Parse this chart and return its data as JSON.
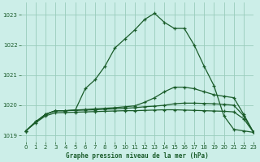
{
  "title": "Graphe pression niveau de la mer (hPa)",
  "bg_color": "#cceee8",
  "grid_color": "#99ccbb",
  "line_color_dark": "#1a5c2a",
  "line_color_med": "#2a7a3a",
  "xlim": [
    -0.5,
    23
  ],
  "ylim": [
    1018.8,
    1023.4
  ],
  "yticks": [
    1019,
    1020,
    1021,
    1022,
    1023
  ],
  "xticks": [
    0,
    1,
    2,
    3,
    4,
    5,
    6,
    7,
    8,
    9,
    10,
    11,
    12,
    13,
    14,
    15,
    16,
    17,
    18,
    19,
    20,
    21,
    22,
    23
  ],
  "series1_x": [
    0,
    1,
    2,
    3,
    4,
    5,
    6,
    7,
    8,
    9,
    10,
    11,
    12,
    13,
    14,
    15,
    16,
    17,
    18,
    19,
    20,
    21,
    22,
    23
  ],
  "series1_y": [
    1019.15,
    1019.45,
    1019.7,
    1019.82,
    1019.82,
    1019.84,
    1020.55,
    1020.85,
    1021.3,
    1021.9,
    1022.2,
    1022.5,
    1022.85,
    1023.05,
    1022.75,
    1022.55,
    1022.55,
    1022.0,
    1021.3,
    1020.65,
    1019.65,
    1019.2,
    1019.15,
    1019.1
  ],
  "series2_x": [
    0,
    1,
    2,
    3,
    4,
    5,
    6,
    7,
    8,
    9,
    10,
    11,
    12,
    13,
    14,
    15,
    16,
    17,
    18,
    19,
    20,
    21,
    22,
    23
  ],
  "series2_y": [
    1019.15,
    1019.45,
    1019.7,
    1019.82,
    1019.82,
    1019.84,
    1019.86,
    1019.88,
    1019.9,
    1019.92,
    1019.95,
    1019.98,
    1020.1,
    1020.25,
    1020.45,
    1020.6,
    1020.6,
    1020.55,
    1020.45,
    1020.35,
    1020.3,
    1020.25,
    1019.7,
    1019.1
  ],
  "series3_x": [
    0,
    1,
    2,
    3,
    4,
    5,
    6,
    7,
    8,
    9,
    10,
    11,
    12,
    13,
    14,
    15,
    16,
    17,
    18,
    19,
    20,
    21,
    22,
    23
  ],
  "series3_y": [
    1019.15,
    1019.45,
    1019.7,
    1019.82,
    1019.82,
    1019.83,
    1019.84,
    1019.85,
    1019.87,
    1019.88,
    1019.9,
    1019.92,
    1019.95,
    1019.97,
    1020.0,
    1020.05,
    1020.07,
    1020.07,
    1020.06,
    1020.05,
    1020.03,
    1020.0,
    1019.65,
    1019.1
  ],
  "series4_x": [
    0,
    1,
    2,
    3,
    4,
    5,
    6,
    7,
    8,
    9,
    10,
    11,
    12,
    13,
    14,
    15,
    16,
    17,
    18,
    19,
    20,
    21,
    22,
    23
  ],
  "series4_y": [
    1019.15,
    1019.42,
    1019.65,
    1019.75,
    1019.76,
    1019.77,
    1019.78,
    1019.79,
    1019.8,
    1019.81,
    1019.82,
    1019.82,
    1019.83,
    1019.84,
    1019.85,
    1019.85,
    1019.84,
    1019.83,
    1019.82,
    1019.81,
    1019.8,
    1019.78,
    1019.55,
    1019.1
  ]
}
